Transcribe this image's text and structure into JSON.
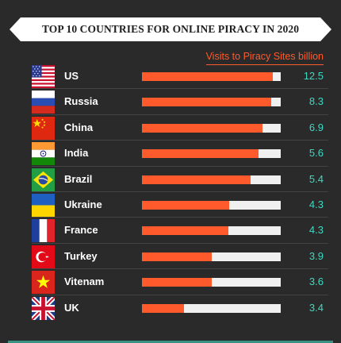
{
  "chart_data": {
    "type": "bar",
    "orientation": "horizontal",
    "title": "TOP 10 COUNTRIES FOR ONLINE PIRACY IN 2020",
    "legend": "Visits to Piracy Sites billion",
    "legend_position": "top-right",
    "categories": [
      "US",
      "Russia",
      "China",
      "India",
      "Brazil",
      "Ukraine",
      "France",
      "Turkey",
      "Vitenam",
      "UK"
    ],
    "values": [
      12.5,
      8.3,
      6.9,
      5.6,
      5.4,
      4.3,
      4.3,
      3.9,
      3.6,
      3.4
    ],
    "value_labels": [
      "12.5",
      "8.3",
      "6.9",
      "5.6",
      "5.4",
      "4.3",
      "4.3",
      "3.9",
      "3.6",
      "3.4"
    ],
    "bar_fill_fraction": [
      0.94,
      0.93,
      0.87,
      0.84,
      0.78,
      0.63,
      0.62,
      0.5,
      0.5,
      0.3
    ],
    "flag_icons": [
      "us-flag-icon",
      "russia-flag-icon",
      "china-flag-icon",
      "india-flag-icon",
      "brazil-flag-icon",
      "ukraine-flag-icon",
      "france-flag-icon",
      "turkey-flag-icon",
      "vietnam-flag-icon",
      "uk-flag-icon"
    ]
  },
  "colors": {
    "background": "#2b2a2a",
    "bar": "#ff5a2b",
    "track": "#f0f0f0",
    "value_text": "#3fd9c2",
    "legend_text": "#ff5a2b"
  }
}
